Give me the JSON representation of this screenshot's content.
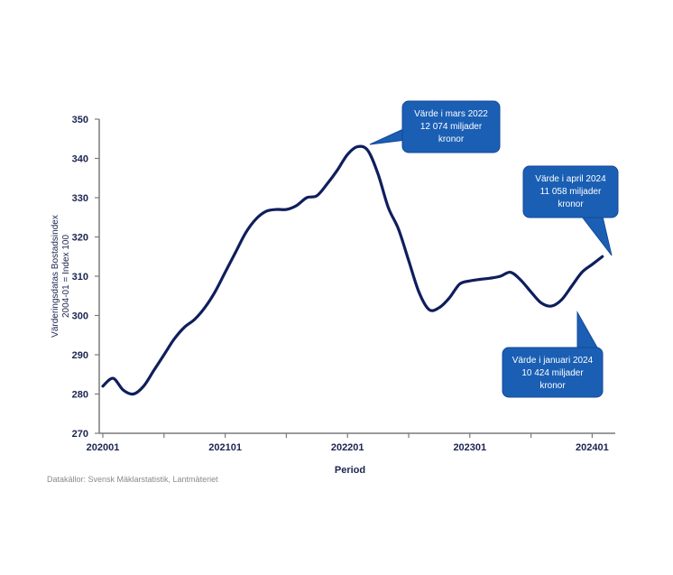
{
  "chart_data": {
    "type": "line",
    "xlabel": "Period",
    "ylabel": [
      "Värderingsdatas Bostadsindex",
      "2004-01 = Index 100"
    ],
    "ylim": [
      270,
      350
    ],
    "yticks": [
      270,
      280,
      290,
      300,
      310,
      320,
      330,
      340,
      350
    ],
    "xticks": [
      {
        "label": "202001",
        "month": 0
      },
      {
        "label": "202101",
        "month": 12
      },
      {
        "label": "202201",
        "month": 24
      },
      {
        "label": "202301",
        "month": 36
      },
      {
        "label": "202401",
        "month": 48
      }
    ],
    "xlim_months": [
      0,
      51
    ],
    "grid": false,
    "series": [
      {
        "color": "#0f1e5c",
        "points": [
          {
            "m": 0,
            "v": 282
          },
          {
            "m": 1,
            "v": 284
          },
          {
            "m": 2,
            "v": 281
          },
          {
            "m": 3,
            "v": 280
          },
          {
            "m": 4,
            "v": 282
          },
          {
            "m": 5,
            "v": 286
          },
          {
            "m": 6,
            "v": 290
          },
          {
            "m": 7,
            "v": 294
          },
          {
            "m": 8,
            "v": 297
          },
          {
            "m": 9,
            "v": 299
          },
          {
            "m": 10,
            "v": 302
          },
          {
            "m": 11,
            "v": 306
          },
          {
            "m": 12,
            "v": 311
          },
          {
            "m": 13,
            "v": 316
          },
          {
            "m": 14,
            "v": 321
          },
          {
            "m": 15,
            "v": 324.5
          },
          {
            "m": 16,
            "v": 326.5
          },
          {
            "m": 17,
            "v": 327
          },
          {
            "m": 18,
            "v": 327
          },
          {
            "m": 19,
            "v": 328
          },
          {
            "m": 20,
            "v": 330
          },
          {
            "m": 21,
            "v": 330.5
          },
          {
            "m": 22,
            "v": 333.5
          },
          {
            "m": 23,
            "v": 337
          },
          {
            "m": 24,
            "v": 341
          },
          {
            "m": 25,
            "v": 343
          },
          {
            "m": 26,
            "v": 342
          },
          {
            "m": 27,
            "v": 336
          },
          {
            "m": 28,
            "v": 327.5
          },
          {
            "m": 29,
            "v": 322
          },
          {
            "m": 30,
            "v": 314
          },
          {
            "m": 31,
            "v": 306
          },
          {
            "m": 32,
            "v": 301.5
          },
          {
            "m": 33,
            "v": 302
          },
          {
            "m": 34,
            "v": 304.5
          },
          {
            "m": 35,
            "v": 308
          },
          {
            "m": 36,
            "v": 308.8
          },
          {
            "m": 37,
            "v": 309.2
          },
          {
            "m": 38,
            "v": 309.5
          },
          {
            "m": 39,
            "v": 310
          },
          {
            "m": 40,
            "v": 311
          },
          {
            "m": 41,
            "v": 309
          },
          {
            "m": 42,
            "v": 306
          },
          {
            "m": 43,
            "v": 303.2
          },
          {
            "m": 44,
            "v": 302.4
          },
          {
            "m": 45,
            "v": 304
          },
          {
            "m": 46,
            "v": 307.5
          },
          {
            "m": 47,
            "v": 311
          },
          {
            "m": 48,
            "v": 313
          },
          {
            "m": 49,
            "v": 315
          }
        ]
      }
    ],
    "annotations": [
      {
        "id": "mar-2022",
        "lines": [
          "Värde i mars 2022",
          "12 074 miljader",
          "kronor"
        ],
        "target": {
          "m": 25,
          "v": 343
        }
      },
      {
        "id": "apr-2024",
        "lines": [
          "Värde i april 2024",
          "11 058 miljader",
          "kronor"
        ],
        "target": {
          "m": 49,
          "v": 315
        }
      },
      {
        "id": "jan-2024",
        "lines": [
          "Värde i januari 2024",
          "10 424 miljader",
          "kronor"
        ],
        "target": {
          "m": 44,
          "v": 302.4
        }
      }
    ],
    "colors": {
      "line": "#0f1e5c",
      "callout_fill": "#1a5fb4",
      "callout_stroke": "#14489a",
      "axis": "#7a7a7a",
      "text": "#1b2450"
    }
  },
  "source": "Datakällor: Svensk Mäklarstatistik, Lantmäteriet"
}
